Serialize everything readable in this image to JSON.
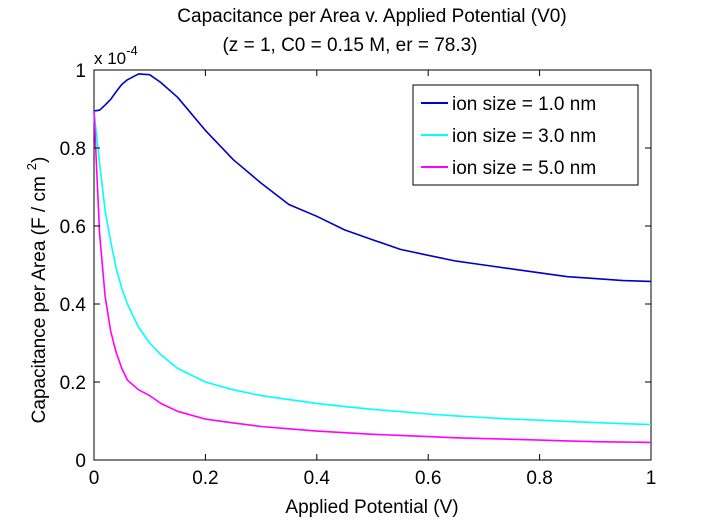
{
  "chart_data": {
    "type": "line",
    "title": "Capacitance per Area v. Applied Potential (V0)",
    "subtitle": "(z = 1, C0 = 0.15 M, er = 78.3)",
    "xlabel": "Applied Potential (V)",
    "ylabel": "Capacitance per Area (F / cm",
    "ylabel_superscript": "2",
    "ylabel_close": ")",
    "exponent_label": "x 10",
    "exponent_power": "-4",
    "xlim": [
      0,
      1
    ],
    "ylim": [
      0,
      1
    ],
    "y_scale_note": "values in units of 1e-4 F/cm^2",
    "x_ticks": [
      0,
      0.2,
      0.4,
      0.6,
      0.8,
      1
    ],
    "x_tick_labels": [
      "0",
      "0.2",
      "0.4",
      "0.6",
      "0.8",
      "1"
    ],
    "y_ticks": [
      0,
      0.2,
      0.4,
      0.6,
      0.8,
      1
    ],
    "y_tick_labels": [
      "0",
      "0.2",
      "0.4",
      "0.6",
      "0.8",
      "1"
    ],
    "grid": false,
    "legend_position": "top-right",
    "x": [
      0,
      0.01,
      0.02,
      0.03,
      0.04,
      0.05,
      0.06,
      0.08,
      0.1,
      0.12,
      0.15,
      0.2,
      0.25,
      0.3,
      0.35,
      0.4,
      0.45,
      0.5,
      0.55,
      0.6,
      0.65,
      0.7,
      0.75,
      0.8,
      0.85,
      0.9,
      0.95,
      1.0
    ],
    "series": [
      {
        "name": "ion size = 1.0 nm",
        "color": "#0000c8",
        "values": [
          0.895,
          0.897,
          0.91,
          0.925,
          0.945,
          0.963,
          0.975,
          0.99,
          0.988,
          0.968,
          0.93,
          0.845,
          0.77,
          0.71,
          0.655,
          0.625,
          0.59,
          0.565,
          0.54,
          0.525,
          0.51,
          0.5,
          0.49,
          0.48,
          0.47,
          0.465,
          0.46,
          0.458
        ]
      },
      {
        "name": "ion size = 3.0 nm",
        "color": "#00ffff",
        "values": [
          0.895,
          0.76,
          0.64,
          0.56,
          0.49,
          0.44,
          0.4,
          0.34,
          0.3,
          0.27,
          0.235,
          0.2,
          0.18,
          0.165,
          0.155,
          0.145,
          0.137,
          0.13,
          0.124,
          0.118,
          0.113,
          0.109,
          0.105,
          0.102,
          0.099,
          0.096,
          0.093,
          0.091
        ]
      },
      {
        "name": "ion size = 5.0 nm",
        "color": "#ff00ff",
        "values": [
          0.895,
          0.58,
          0.42,
          0.33,
          0.275,
          0.235,
          0.205,
          0.18,
          0.165,
          0.145,
          0.125,
          0.105,
          0.095,
          0.086,
          0.08,
          0.074,
          0.07,
          0.066,
          0.063,
          0.06,
          0.057,
          0.055,
          0.053,
          0.051,
          0.049,
          0.047,
          0.046,
          0.045
        ]
      }
    ]
  }
}
